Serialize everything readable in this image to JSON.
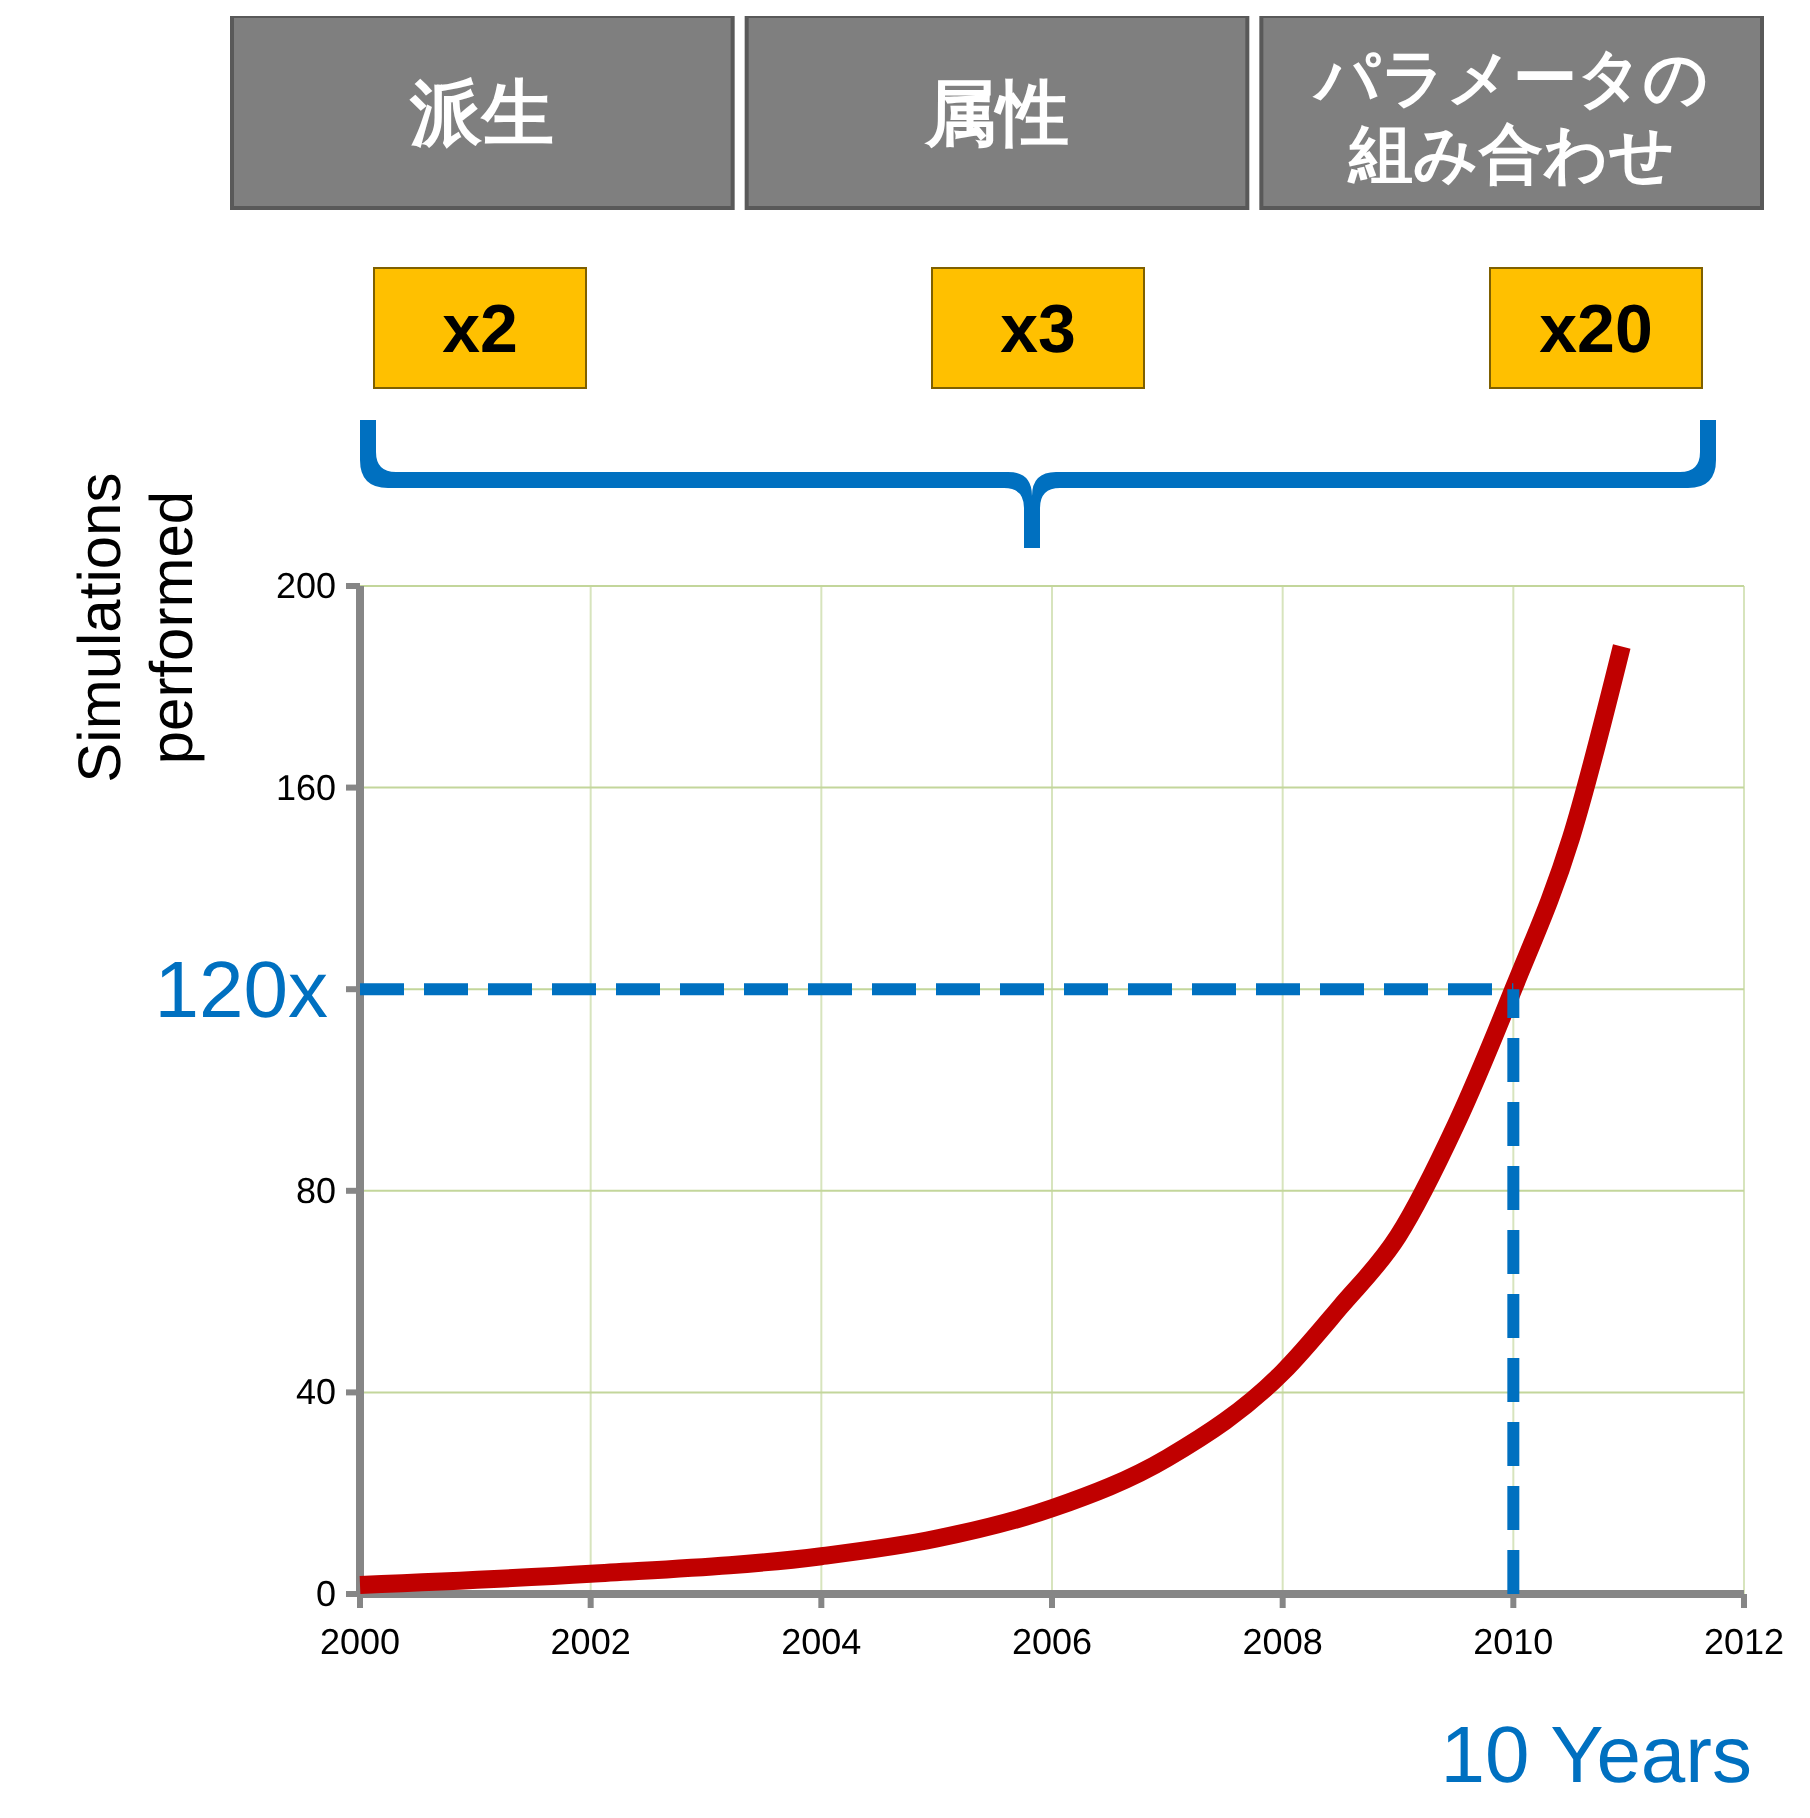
{
  "chart_data": {
    "type": "line",
    "ylabel": "Simulations\nperformed",
    "x": [
      2000,
      2002,
      2004,
      2005,
      2006,
      2007,
      2008,
      2008.5,
      2009,
      2009.5,
      2010,
      2010.5,
      2010.94
    ],
    "series": [
      {
        "color": "#c00000",
        "values": [
          1.8,
          4,
          7.5,
          11,
          17,
          27,
          44,
          57,
          71,
          93,
          120,
          150,
          188
        ]
      }
    ],
    "xlim": [
      2000,
      2012
    ],
    "xticks": [
      2000,
      2002,
      2004,
      2006,
      2008,
      2010,
      2012
    ],
    "ylim": [
      0,
      200
    ],
    "yticks": [
      0,
      40,
      80,
      {
        "value": 120,
        "label": null
      },
      160,
      200
    ],
    "grid": true,
    "marker": "none",
    "line_style": "solid",
    "ref_lines": [
      {
        "axis": "y",
        "value": 120,
        "label": "120x",
        "color": "#0070c0",
        "line_style": "dashed"
      },
      {
        "axis": "x",
        "value": 2010,
        "label": "10 Years",
        "color": "#0070c0",
        "line_style": "dashed"
      }
    ],
    "annotations": [
      "派生",
      "属性",
      "パラメータの組み合わせ",
      "x2",
      "x3",
      "x20"
    ]
  }
}
